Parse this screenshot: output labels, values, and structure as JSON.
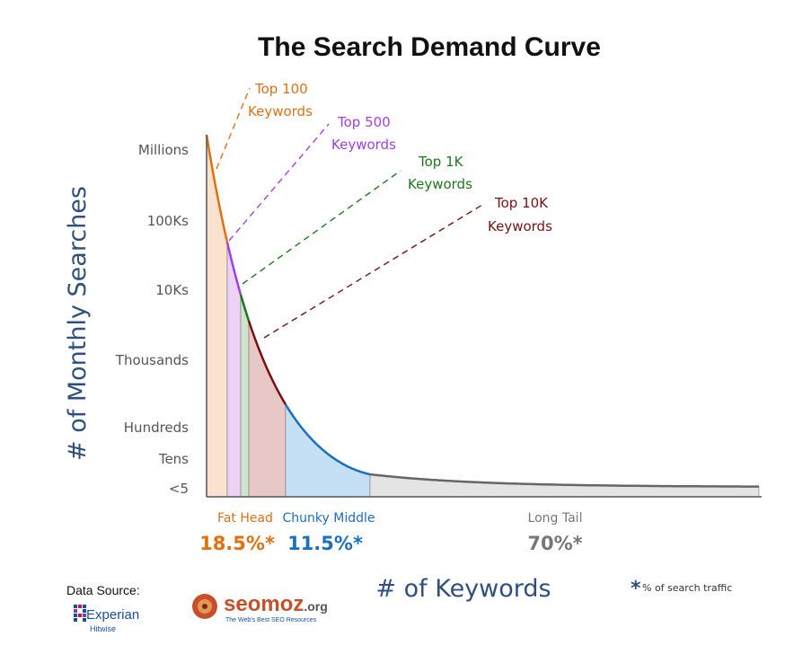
{
  "chart_data": {
    "type": "area",
    "title": "The Search Demand Curve",
    "ylabel": "# of Monthly Searches",
    "xlabel": "# of Keywords",
    "y_scale": "log",
    "y_ticks": [
      "Millions",
      "100Ks",
      "10Ks",
      "Thousands",
      "Hundreds",
      "Tens",
      "<5"
    ],
    "annotations": [
      {
        "line1": "Top 100",
        "line2": "Keywords",
        "color": "#e07010"
      },
      {
        "line1": "Top 500",
        "line2": "Keywords",
        "color": "#a040e0"
      },
      {
        "line1": "Top 1K",
        "line2": "Keywords",
        "color": "#1a7a1a"
      },
      {
        "line1": "Top 10K",
        "line2": "Keywords",
        "color": "#7a1010"
      }
    ],
    "segments": [
      {
        "name": "Fat Head",
        "share": "18.5%",
        "share_value": 18.5,
        "color": "#e07010"
      },
      {
        "name": "Chunky Middle",
        "share": "11.5%",
        "share_value": 11.5,
        "color": "#1b6fc0"
      },
      {
        "name": "Long Tail",
        "share": "70%",
        "share_value": 70,
        "color": "#777777"
      }
    ],
    "asterisk": "*",
    "footnote": "% of search traffic",
    "grid": false
  },
  "source": {
    "label": "Data Source:",
    "experian": "Experian",
    "hitwise": "Hitwise",
    "seomoz": "seomoz",
    "seomoz_tld": ".org",
    "seomoz_tagline": "The Web's Best SEO Resources"
  }
}
